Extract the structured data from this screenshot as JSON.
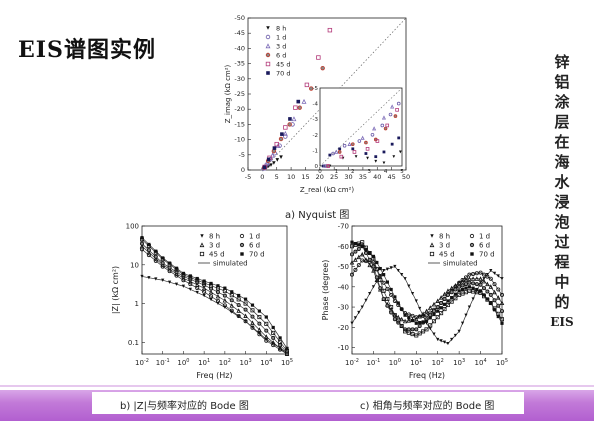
{
  "slide": {
    "title": "EIS谱图实例",
    "side_text": [
      "锌",
      "铝",
      "涂",
      "层",
      "在",
      "海",
      "水",
      "浸",
      "泡",
      "过",
      "程",
      "中",
      "的",
      "EIS"
    ]
  },
  "legend_labels": [
    "8 h",
    "1 d",
    "3 d",
    "6 d",
    "45 d",
    "70 d",
    "simulated"
  ],
  "colors": {
    "footer_bar": "#b25fd0",
    "series_dark": "#111111"
  },
  "chart_data": [
    {
      "id": "nyquist",
      "type": "scatter",
      "caption": "a) Nyquist 图",
      "xlabel": "Z_real (kΩ cm²)",
      "ylabel": "Z_imag (kΩ cm²)",
      "xlim": [
        -5,
        50
      ],
      "ylim": [
        0,
        -50
      ],
      "xticks": [
        "-5",
        "0",
        "5",
        "10",
        "15",
        "20",
        "25",
        "30",
        "35",
        "40",
        "45",
        "50"
      ],
      "yticks": [
        "0",
        "-5",
        "-10",
        "-15",
        "-20",
        "-25",
        "-30",
        "-35",
        "-40",
        "-45",
        "-50"
      ],
      "legend": [
        "8 h",
        "1 d",
        "3 d",
        "6 d",
        "45 d",
        "70 d"
      ],
      "series": [
        {
          "name": "8 h",
          "x": [
            0.2,
            0.8,
            1.5,
            2.2,
            3.0,
            4.0,
            5.2,
            6.5
          ],
          "y": [
            -0.1,
            -0.4,
            -0.8,
            -1.2,
            -1.6,
            -2.3,
            -3.3,
            -4.2
          ]
        },
        {
          "name": "1 d",
          "x": [
            0.5,
            1.5,
            2.8,
            4.3,
            6.0,
            8.0,
            10.5
          ],
          "y": [
            -0.5,
            -1.8,
            -3.5,
            -5.5,
            -8.0,
            -11.0,
            -15.0
          ]
        },
        {
          "name": "3 d",
          "x": [
            0.5,
            1.8,
            3.5,
            5.5,
            8.0,
            11.0,
            14.5
          ],
          "y": [
            -0.6,
            -2.3,
            -4.8,
            -8.0,
            -12.0,
            -16.8,
            -22.5
          ]
        },
        {
          "name": "6 d",
          "x": [
            0.6,
            2.0,
            4.0,
            6.5,
            9.5,
            13.0,
            17.0,
            21.0
          ],
          "y": [
            -0.8,
            -3.0,
            -6.2,
            -10.2,
            -15.0,
            -20.5,
            -26.8,
            -33.5
          ]
        },
        {
          "name": "45 d",
          "x": [
            0.8,
            2.5,
            5.0,
            8.0,
            11.5,
            15.5,
            19.5,
            23.5
          ],
          "y": [
            -1.0,
            -4.0,
            -8.5,
            -14.0,
            -20.5,
            -28.0,
            -37.0,
            -46.0
          ]
        },
        {
          "name": "70 d",
          "x": [
            0.7,
            2.2,
            4.2,
            6.8,
            9.6,
            12.5
          ],
          "y": [
            -0.9,
            -3.5,
            -7.2,
            -11.8,
            -16.8,
            -22.5
          ]
        }
      ],
      "inset": {
        "xticks": [
          "0",
          "1",
          "2",
          "3",
          "4",
          "5"
        ],
        "yticks": [
          "0",
          "-1",
          "-2",
          "-3",
          "-4",
          "-5"
        ],
        "xlim": [
          0,
          5
        ],
        "ylim": [
          0,
          -5
        ]
      }
    },
    {
      "id": "bode-magnitude",
      "type": "line",
      "caption": "b) |Z|与频率对应的 Bode 图",
      "xlabel": "Freq (Hz)",
      "ylabel": "|Z| (kΩ cm²)",
      "x_scale": "log",
      "y_scale": "log",
      "xticks": [
        "10-2",
        "10-1",
        "100",
        "101",
        "102",
        "103",
        "104",
        "105"
      ],
      "yticks": [
        "0.1",
        "1",
        "10",
        "100"
      ],
      "legend": [
        "8 h",
        "1 d",
        "3 d",
        "6 d",
        "45 d",
        "70 d",
        "simulated"
      ],
      "series": [
        {
          "name": "8 h",
          "x": [
            0.01,
            0.1,
            1,
            10,
            100,
            1000,
            10000,
            100000
          ],
          "y": [
            5,
            4.0,
            2.8,
            1.6,
            0.8,
            0.35,
            0.12,
            0.055
          ]
        },
        {
          "name": "1 d",
          "x": [
            0.01,
            0.1,
            1,
            10,
            100,
            1000,
            10000,
            100000
          ],
          "y": [
            25,
            9,
            4.0,
            2.0,
            0.9,
            0.35,
            0.11,
            0.05
          ]
        },
        {
          "name": "3 d",
          "x": [
            0.01,
            0.1,
            1,
            10,
            100,
            1000,
            10000,
            100000
          ],
          "y": [
            30,
            10,
            4.5,
            2.5,
            1.2,
            0.48,
            0.14,
            0.05
          ]
        },
        {
          "name": "6 d",
          "x": [
            0.01,
            0.1,
            1,
            10,
            100,
            1000,
            10000,
            100000
          ],
          "y": [
            35,
            11,
            5.0,
            3.0,
            1.6,
            0.7,
            0.2,
            0.055
          ]
        },
        {
          "name": "45 d",
          "x": [
            0.01,
            0.1,
            1,
            10,
            100,
            1000,
            10000,
            100000
          ],
          "y": [
            45,
            14,
            5.5,
            3.4,
            2.1,
            1.0,
            0.3,
            0.06
          ]
        },
        {
          "name": "70 d",
          "x": [
            0.01,
            0.1,
            1,
            10,
            100,
            1000,
            10000,
            100000
          ],
          "y": [
            50,
            15,
            6.0,
            3.8,
            2.5,
            1.3,
            0.45,
            0.07
          ]
        }
      ]
    },
    {
      "id": "bode-phase",
      "type": "line",
      "caption": "c) 相角与频率对应的 Bode 图",
      "xlabel": "Freq (Hz)",
      "ylabel": "Phase (degree)",
      "x_scale": "log",
      "ylim": [
        -10,
        -70
      ],
      "xticks": [
        "10-2",
        "10-1",
        "100",
        "101",
        "102",
        "103",
        "104",
        "105"
      ],
      "yticks": [
        "-70",
        "-60",
        "-50",
        "-40",
        "-30",
        "-20",
        "-10"
      ],
      "legend": [
        "8 h",
        "1 d",
        "3 d",
        "6 d",
        "45 d",
        "70 d",
        "simulated"
      ],
      "series": [
        {
          "name": "8 h",
          "x": [
            0.01,
            0.03,
            0.1,
            0.3,
            1,
            3,
            10,
            30,
            100,
            300,
            1000,
            3000,
            10000,
            30000,
            100000
          ],
          "y": [
            -22,
            -30,
            -40,
            -48,
            -50,
            -44,
            -33,
            -22,
            -14,
            -12,
            -18,
            -30,
            -42,
            -48,
            -44
          ]
        },
        {
          "name": "1 d",
          "x": [
            0.01,
            0.03,
            0.1,
            0.3,
            1,
            3,
            10,
            30,
            100,
            300,
            1000,
            3000,
            10000,
            30000,
            100000
          ],
          "y": [
            -46,
            -53,
            -52,
            -42,
            -33,
            -27,
            -25,
            -26,
            -30,
            -36,
            -42,
            -46,
            -47,
            -44,
            -36
          ]
        },
        {
          "name": "3 d",
          "x": [
            0.01,
            0.03,
            0.1,
            0.3,
            1,
            3,
            10,
            30,
            100,
            300,
            1000,
            3000,
            10000,
            30000,
            100000
          ],
          "y": [
            -52,
            -56,
            -48,
            -34,
            -26,
            -23,
            -24,
            -28,
            -33,
            -38,
            -42,
            -44,
            -44,
            -40,
            -32
          ]
        },
        {
          "name": "6 d",
          "x": [
            0.01,
            0.03,
            0.1,
            0.3,
            1,
            3,
            10,
            30,
            100,
            300,
            1000,
            3000,
            10000,
            30000,
            100000
          ],
          "y": [
            -56,
            -60,
            -50,
            -34,
            -24,
            -19,
            -19,
            -24,
            -30,
            -36,
            -40,
            -42,
            -41,
            -36,
            -28
          ]
        },
        {
          "name": "45 d",
          "x": [
            0.01,
            0.03,
            0.1,
            0.3,
            1,
            3,
            10,
            30,
            100,
            300,
            1000,
            3000,
            10000,
            30000,
            100000
          ],
          "y": [
            -60,
            -62,
            -54,
            -38,
            -26,
            -18,
            -16,
            -19,
            -25,
            -31,
            -36,
            -38,
            -37,
            -32,
            -24
          ]
        },
        {
          "name": "70 d",
          "x": [
            0.01,
            0.03,
            0.1,
            0.3,
            1,
            3,
            10,
            30,
            100,
            300,
            1000,
            3000,
            10000,
            30000,
            100000
          ],
          "y": [
            -62,
            -60,
            -55,
            -46,
            -35,
            -26,
            -22,
            -23,
            -28,
            -33,
            -38,
            -40,
            -38,
            -32,
            -22
          ]
        }
      ]
    }
  ]
}
